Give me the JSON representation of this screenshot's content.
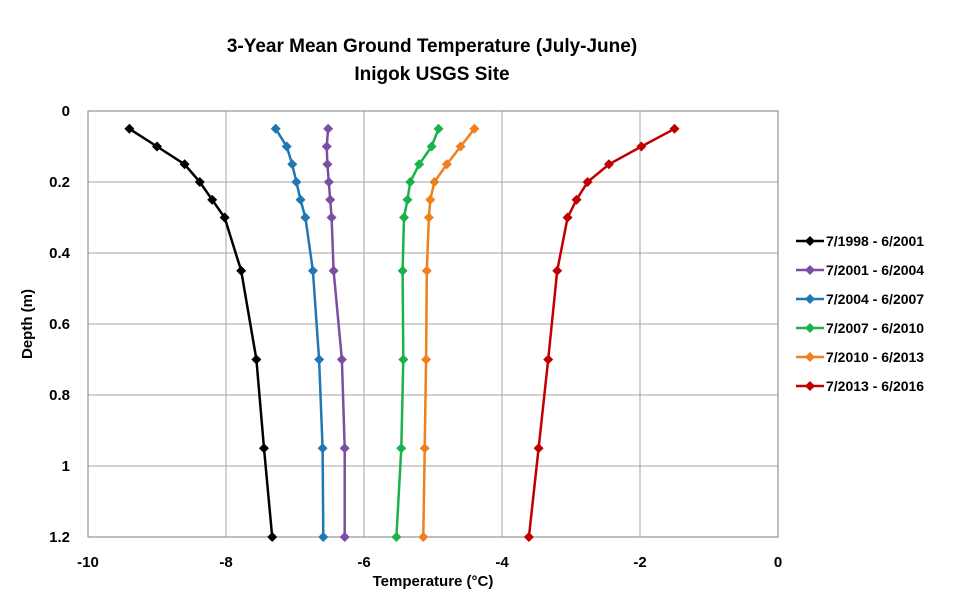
{
  "chart_data": {
    "type": "line",
    "title": "3-Year Mean Ground Temperature (July-June)",
    "subtitle": "Inigok USGS Site",
    "xlabel": "Temperature (°C)",
    "ylabel": "Depth (m)",
    "xlim": [
      -10,
      0
    ],
    "ylim": [
      0,
      1.2
    ],
    "y_inverted": true,
    "xticks": [
      -10,
      -8,
      -6,
      -4,
      -2,
      0
    ],
    "yticks": [
      0,
      0.2,
      0.4,
      0.6,
      0.8,
      1,
      1.2
    ],
    "xtick_labels": [
      "-10",
      "-8",
      "-6",
      "-4",
      "-2",
      "0"
    ],
    "ytick_labels": [
      "0",
      "0.2",
      "0.4",
      "0.6",
      "0.8",
      "1",
      "1.2"
    ],
    "grid": true,
    "legend_position": "right",
    "depths": [
      0.05,
      0.1,
      0.15,
      0.2,
      0.25,
      0.3,
      0.45,
      0.7,
      0.95,
      1.2
    ],
    "series": [
      {
        "name": "7/1998 - 6/2001",
        "color": "#000000",
        "values": [
          -9.4,
          -9.0,
          -8.6,
          -8.38,
          -8.2,
          -8.02,
          -7.78,
          -7.56,
          -7.45,
          -7.33
        ]
      },
      {
        "name": "7/2001 - 6/2004",
        "color": "#7B4EA3",
        "values": [
          -6.52,
          -6.54,
          -6.53,
          -6.51,
          -6.49,
          -6.47,
          -6.44,
          -6.32,
          -6.28,
          -6.28
        ]
      },
      {
        "name": "7/2004 - 6/2007",
        "color": "#1F77B4",
        "values": [
          -7.28,
          -7.12,
          -7.04,
          -6.98,
          -6.92,
          -6.85,
          -6.74,
          -6.65,
          -6.6,
          -6.59
        ]
      },
      {
        "name": "7/2007 - 6/2010",
        "color": "#1DB14C",
        "values": [
          -4.92,
          -5.02,
          -5.2,
          -5.33,
          -5.37,
          -5.42,
          -5.44,
          -5.43,
          -5.46,
          -5.53
        ]
      },
      {
        "name": "7/2010 - 6/2013",
        "color": "#F07F1E",
        "values": [
          -4.4,
          -4.6,
          -4.8,
          -4.98,
          -5.04,
          -5.06,
          -5.09,
          -5.1,
          -5.12,
          -5.14
        ]
      },
      {
        "name": "7/2013 - 6/2016",
        "color": "#C00000",
        "values": [
          -1.5,
          -1.98,
          -2.45,
          -2.76,
          -2.92,
          -3.05,
          -3.2,
          -3.33,
          -3.47,
          -3.61
        ]
      }
    ]
  }
}
